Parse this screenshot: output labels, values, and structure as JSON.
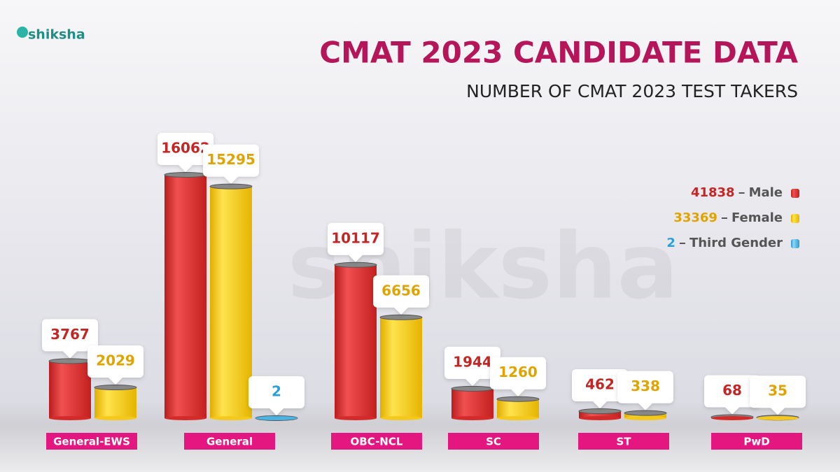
{
  "brand": "shiksha",
  "chart_data": {
    "type": "bar",
    "title": "CMAT 2023 CANDIDATE DATA",
    "subtitle": "NUMBER OF CMAT 2023 TEST TAKERS",
    "categories": [
      "General-EWS",
      "General",
      "OBC-NCL",
      "SC",
      "ST",
      "PwD"
    ],
    "series": [
      {
        "name": "Male",
        "total": 41838,
        "color": "#d42a2a",
        "values": [
          3767,
          16062,
          10117,
          1944,
          462,
          68
        ]
      },
      {
        "name": "Female",
        "total": 33369,
        "color": "#f5c91c",
        "values": [
          2029,
          15295,
          6656,
          1260,
          338,
          35
        ]
      },
      {
        "name": "Third Gender",
        "total": 2,
        "color": "#49b4e6",
        "values": [
          null,
          2,
          null,
          null,
          null,
          null
        ]
      }
    ]
  }
}
